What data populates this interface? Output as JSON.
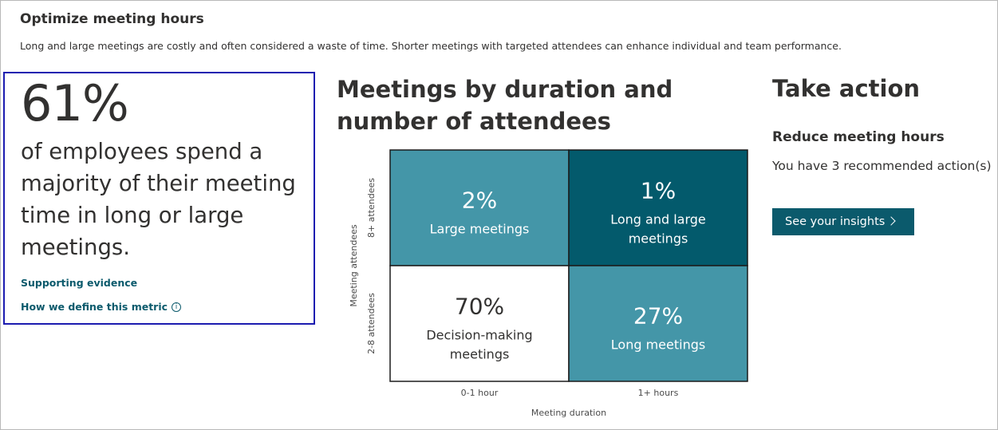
{
  "card": {
    "title": "Optimize meeting hours",
    "description": "Long and large meetings are costly and often considered a waste of time. Shorter meetings with targeted attendees can enhance individual and team performance."
  },
  "metric": {
    "value": "61%",
    "text": "of employees spend a majority of their meeting time in long or large meetings.",
    "supporting_link": "Supporting evidence",
    "define_link": "How we define this metric",
    "info_icon": "info-icon"
  },
  "chart": {
    "title": "Meetings by duration and number of attendees"
  },
  "chart_data": {
    "type": "heatmap",
    "title": "Meetings by duration and number of attendees",
    "xlabel": "Meeting duration",
    "ylabel": "Meeting attendees",
    "x_categories": [
      "0-1 hour",
      "1+ hours"
    ],
    "y_categories": [
      "8+ attendees",
      "2-8 attendees"
    ],
    "cells": [
      {
        "x": "0-1 hour",
        "y": "8+ attendees",
        "value": "2%",
        "label": "Large meetings",
        "color": "#4496a8"
      },
      {
        "x": "1+ hours",
        "y": "8+ attendees",
        "value": "1%",
        "label": "Long and large meetings",
        "color": "#035a6c"
      },
      {
        "x": "0-1 hour",
        "y": "2-8 attendees",
        "value": "70%",
        "label": "Decision-making meetings",
        "color": "#ffffff"
      },
      {
        "x": "1+ hours",
        "y": "2-8 attendees",
        "value": "27%",
        "label": "Long meetings",
        "color": "#4496a8"
      }
    ]
  },
  "action": {
    "title": "Take action",
    "subtitle": "Reduce meeting hours",
    "recommendation": "You have 3 recommended action(s)",
    "button_label": "See your insights"
  },
  "colors": {
    "accent": "#0b5a6c",
    "focus_border": "#1c1cb0"
  }
}
